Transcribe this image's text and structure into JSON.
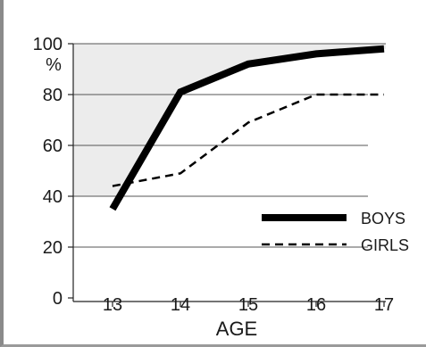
{
  "chart_data": {
    "type": "line",
    "title": "",
    "xlabel": "AGE",
    "ylabel": "%",
    "x": [
      13,
      14,
      15,
      16,
      17
    ],
    "xlim": [
      12.5,
      17.1
    ],
    "ylim": [
      0,
      100
    ],
    "yticks": [
      0,
      20,
      40,
      60,
      80,
      100
    ],
    "xtick_labels": [
      "13",
      "14",
      "15",
      "16",
      "17"
    ],
    "ytick_labels": [
      "0",
      "20",
      "40",
      "60",
      "80",
      "100"
    ],
    "grid": true,
    "legend_position": "lower-right",
    "series": [
      {
        "name": "BOYS",
        "style": "solid-thick",
        "color": "#000000",
        "values": [
          35,
          81,
          92,
          96,
          98
        ]
      },
      {
        "name": "GIRLS",
        "style": "dashed",
        "color": "#000000",
        "values": [
          44,
          49,
          69,
          80,
          80
        ]
      }
    ],
    "shaded_region": {
      "description_color": "#ececec"
    }
  }
}
